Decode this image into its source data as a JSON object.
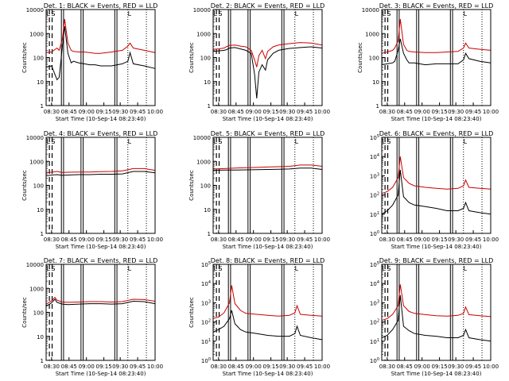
{
  "chart_data": [
    {
      "type": "line",
      "title": "Det. 1: BLACK = Events, RED = LLD",
      "ylabel": "Counts/sec",
      "xlabel": "Start Time (10-Sep-14 08:23:40)",
      "yscale": "log",
      "ylim": [
        1,
        10000
      ],
      "ytick_format": "plain",
      "x": [
        0,
        5,
        10,
        12,
        15,
        17,
        20,
        23,
        25,
        30,
        35,
        40,
        45,
        50,
        60,
        70,
        75,
        77,
        80,
        90,
        100
      ],
      "series": [
        {
          "name": "BLACK = Events",
          "color": "#000000",
          "values": [
            40,
            45,
            12,
            15,
            300,
            2000,
            150,
            60,
            70,
            60,
            55,
            50,
            50,
            45,
            45,
            55,
            70,
            160,
            55,
            45,
            35
          ]
        },
        {
          "name": "RED = LLD",
          "color": "#cc0000",
          "values": [
            160,
            170,
            250,
            200,
            600,
            4000,
            400,
            200,
            180,
            170,
            170,
            160,
            150,
            150,
            170,
            200,
            300,
            400,
            250,
            200,
            160
          ]
        }
      ],
      "annotations": [
        "L",
        "S",
        "L"
      ]
    },
    {
      "type": "line",
      "title": "Det. 2: BLACK = Events, RED = LLD",
      "ylabel": "Counts/sec",
      "xlabel": "Start Time (10-Sep-14 08:23:40)",
      "yscale": "log",
      "ylim": [
        1,
        10000
      ],
      "ytick_format": "plain",
      "x": [
        0,
        5,
        10,
        12,
        15,
        20,
        25,
        30,
        35,
        38,
        40,
        42,
        45,
        48,
        50,
        55,
        60,
        65,
        70,
        75,
        80,
        90,
        100
      ],
      "series": [
        {
          "name": "BLACK = Events",
          "color": "#000000",
          "values": [
            180,
            190,
            200,
            210,
            250,
            260,
            230,
            200,
            150,
            20,
            2,
            25,
            50,
            30,
            80,
            150,
            200,
            220,
            240,
            250,
            260,
            280,
            250
          ]
        },
        {
          "name": "RED = LLD",
          "color": "#cc0000",
          "values": [
            220,
            230,
            250,
            280,
            320,
            330,
            300,
            280,
            200,
            80,
            40,
            120,
            200,
            90,
            180,
            280,
            330,
            360,
            380,
            400,
            420,
            400,
            330
          ]
        }
      ],
      "annotations": [
        "L",
        "S",
        "L"
      ]
    },
    {
      "type": "line",
      "title": "Det. 3: BLACK = Events, RED = LLD",
      "ylabel": "Counts/sec",
      "xlabel": "Start Time (10-Sep-14 08:23:40)",
      "yscale": "log",
      "ylim": [
        1,
        10000
      ],
      "ytick_format": "plain",
      "x": [
        0,
        5,
        10,
        12,
        15,
        17,
        20,
        23,
        25,
        30,
        40,
        50,
        60,
        70,
        75,
        77,
        80,
        90,
        100
      ],
      "series": [
        {
          "name": "BLACK = Events",
          "color": "#000000",
          "values": [
            50,
            55,
            60,
            70,
            200,
            600,
            150,
            80,
            60,
            60,
            50,
            55,
            55,
            55,
            80,
            150,
            90,
            70,
            60
          ]
        },
        {
          "name": "RED = LLD",
          "color": "#cc0000",
          "values": [
            150,
            170,
            200,
            250,
            500,
            4000,
            350,
            200,
            180,
            170,
            160,
            160,
            170,
            180,
            250,
            400,
            250,
            220,
            200
          ]
        }
      ],
      "annotations": [
        "L",
        "S",
        "L"
      ]
    },
    {
      "type": "line",
      "title": "Det. 4: BLACK = Events, RED = LLD",
      "ylabel": "Counts/sec",
      "xlabel": "Start Time (10-Sep-14 08:23:40)",
      "yscale": "log",
      "ylim": [
        1,
        10000
      ],
      "ytick_format": "plain",
      "x": [
        0,
        5,
        10,
        15,
        20,
        30,
        40,
        50,
        60,
        70,
        80,
        90,
        100
      ],
      "series": [
        {
          "name": "BLACK = Events",
          "color": "#000000",
          "values": [
            250,
            270,
            280,
            260,
            270,
            280,
            280,
            290,
            290,
            300,
            380,
            380,
            330
          ]
        },
        {
          "name": "RED = LLD",
          "color": "#cc0000",
          "values": [
            330,
            350,
            380,
            340,
            350,
            360,
            360,
            370,
            380,
            400,
            500,
            500,
            420
          ]
        }
      ],
      "annotations": [
        "L",
        "S",
        "L"
      ]
    },
    {
      "type": "line",
      "title": "Det. 5: BLACK = Events, RED = LLD",
      "ylabel": "Counts/sec",
      "xlabel": "Start Time (10-Sep-14 08:23:40)",
      "yscale": "log",
      "ylim": [
        1,
        10000
      ],
      "ytick_format": "plain",
      "x": [
        0,
        10,
        20,
        30,
        40,
        50,
        60,
        70,
        80,
        90,
        100
      ],
      "series": [
        {
          "name": "BLACK = Events",
          "color": "#000000",
          "values": [
            420,
            430,
            430,
            440,
            450,
            460,
            470,
            480,
            520,
            520,
            460
          ]
        },
        {
          "name": "RED = LLD",
          "color": "#cc0000",
          "values": [
            480,
            500,
            520,
            540,
            560,
            580,
            600,
            620,
            700,
            700,
            620
          ]
        }
      ],
      "annotations": [
        "L",
        "S",
        "L"
      ]
    },
    {
      "type": "line",
      "title": "Det. 6: BLACK = Events, RED = LLD",
      "ylabel": "",
      "xlabel": "Start Time (10-Sep-14 08:23:40)",
      "yscale": "log",
      "ylim": [
        1,
        100000
      ],
      "ytick_format": "exp",
      "x": [
        0,
        5,
        10,
        15,
        17,
        20,
        25,
        30,
        40,
        50,
        60,
        70,
        75,
        77,
        80,
        90,
        100
      ],
      "series": [
        {
          "name": "BLACK = Events",
          "color": "#000000",
          "values": [
            10,
            15,
            30,
            100,
            2000,
            80,
            40,
            30,
            25,
            20,
            15,
            15,
            20,
            40,
            15,
            12,
            10
          ]
        },
        {
          "name": "RED = LLD",
          "color": "#cc0000",
          "values": [
            120,
            150,
            250,
            800,
            10000,
            800,
            400,
            300,
            250,
            220,
            200,
            220,
            300,
            600,
            250,
            220,
            200
          ]
        }
      ],
      "annotations": [
        "L",
        "S",
        "L"
      ]
    },
    {
      "type": "line",
      "title": "Det. 7: BLACK = Events, RED = LLD",
      "ylabel": "Counts/sec",
      "xlabel": "Start Time (10-Sep-14 08:23:40)",
      "yscale": "log",
      "ylim": [
        1,
        10000
      ],
      "ytick_format": "plain",
      "x": [
        0,
        5,
        8,
        10,
        15,
        20,
        30,
        40,
        50,
        60,
        70,
        80,
        90,
        100
      ],
      "series": [
        {
          "name": "BLACK = Events",
          "color": "#000000",
          "values": [
            180,
            250,
            350,
            260,
            220,
            210,
            220,
            230,
            230,
            220,
            230,
            290,
            280,
            230
          ]
        },
        {
          "name": "RED = LLD",
          "color": "#cc0000",
          "values": [
            220,
            300,
            420,
            320,
            270,
            260,
            270,
            280,
            280,
            270,
            280,
            350,
            340,
            290
          ]
        }
      ],
      "annotations": [
        "L",
        "S",
        "L"
      ]
    },
    {
      "type": "line",
      "title": "Det. 8: BLACK = Events, RED = LLD",
      "ylabel": "Counts/sec",
      "xlabel": "Start Time (10-Sep-14 08:23:40)",
      "yscale": "log",
      "ylim": [
        1,
        100000
      ],
      "ytick_format": "exp",
      "x": [
        0,
        5,
        10,
        15,
        17,
        20,
        25,
        30,
        40,
        50,
        60,
        70,
        75,
        77,
        80,
        90,
        100
      ],
      "series": [
        {
          "name": "BLACK = Events",
          "color": "#000000",
          "values": [
            30,
            40,
            60,
            150,
            400,
            80,
            40,
            30,
            25,
            20,
            18,
            18,
            25,
            60,
            20,
            15,
            12
          ]
        },
        {
          "name": "RED = LLD",
          "color": "#cc0000",
          "values": [
            150,
            180,
            300,
            1000,
            8000,
            900,
            400,
            280,
            250,
            220,
            200,
            220,
            300,
            700,
            250,
            220,
            200
          ]
        }
      ],
      "annotations": [
        "L",
        "S",
        "L"
      ]
    },
    {
      "type": "line",
      "title": "Det. 9: BLACK = Events, RED = LLD",
      "ylabel": "",
      "xlabel": "Start Time (10-Sep-14 08:23:40)",
      "yscale": "log",
      "ylim": [
        1,
        100000
      ],
      "ytick_format": "exp",
      "x": [
        0,
        5,
        10,
        15,
        17,
        20,
        25,
        30,
        40,
        50,
        60,
        70,
        75,
        77,
        80,
        90,
        100
      ],
      "series": [
        {
          "name": "BLACK = Events",
          "color": "#000000",
          "values": [
            15,
            20,
            40,
            120,
            2500,
            60,
            35,
            25,
            20,
            18,
            15,
            15,
            20,
            40,
            15,
            12,
            10
          ]
        },
        {
          "name": "RED = LLD",
          "color": "#cc0000",
          "values": [
            120,
            150,
            250,
            700,
            9000,
            700,
            350,
            280,
            240,
            210,
            200,
            220,
            280,
            600,
            240,
            210,
            190
          ]
        }
      ],
      "annotations": [
        "L",
        "S",
        "L"
      ]
    }
  ],
  "xaxis": {
    "tick_labels": [
      "08:30",
      "08:45",
      "09:00",
      "09:15",
      "09:30",
      "09:45",
      "10:00"
    ],
    "tick_positions": [
      5,
      21,
      37,
      53,
      68,
      84,
      100
    ],
    "dashed_markers": [
      3,
      5.5
    ],
    "solid_markers": [
      14,
      16,
      32,
      34,
      63,
      65
    ],
    "dotted_markers": [
      75,
      92
    ]
  },
  "yaxis_tick_labels": {
    "plain": [
      "1",
      "10",
      "100",
      "1000",
      "10000"
    ],
    "exp_mantissa": "10",
    "exp_powers": [
      "0",
      "1",
      "2",
      "3",
      "4",
      "5"
    ]
  }
}
